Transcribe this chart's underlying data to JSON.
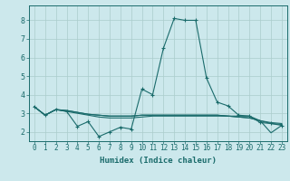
{
  "xlabel": "Humidex (Indice chaleur)",
  "xlim": [
    -0.5,
    23.5
  ],
  "ylim": [
    1.5,
    8.8
  ],
  "yticks": [
    2,
    3,
    4,
    5,
    6,
    7,
    8
  ],
  "xticks": [
    0,
    1,
    2,
    3,
    4,
    5,
    6,
    7,
    8,
    9,
    10,
    11,
    12,
    13,
    14,
    15,
    16,
    17,
    18,
    19,
    20,
    21,
    22,
    23
  ],
  "bg_color": "#cce8ec",
  "grid_color": "#aacccc",
  "line_color": "#1a6b6b",
  "lines": [
    [
      3.35,
      2.9,
      3.2,
      3.1,
      2.3,
      2.55,
      1.75,
      2.0,
      2.25,
      2.15,
      4.3,
      4.0,
      6.5,
      8.1,
      8.0,
      8.0,
      4.9,
      3.6,
      3.4,
      2.9,
      2.85,
      2.5,
      2.45,
      2.35
    ],
    [
      3.35,
      2.9,
      3.2,
      3.1,
      3.0,
      2.9,
      2.8,
      2.75,
      2.75,
      2.75,
      2.8,
      2.85,
      2.85,
      2.85,
      2.85,
      2.85,
      2.85,
      2.85,
      2.85,
      2.85,
      2.85,
      2.6,
      2.5,
      2.45
    ],
    [
      3.35,
      2.9,
      3.2,
      3.15,
      3.05,
      2.95,
      2.9,
      2.85,
      2.85,
      2.85,
      2.9,
      2.9,
      2.9,
      2.9,
      2.9,
      2.9,
      2.9,
      2.9,
      2.85,
      2.8,
      2.75,
      2.6,
      2.45,
      2.4
    ],
    [
      3.35,
      2.9,
      3.2,
      3.15,
      3.05,
      2.95,
      2.9,
      2.85,
      2.85,
      2.85,
      2.9,
      2.9,
      2.9,
      2.9,
      2.9,
      2.9,
      2.9,
      2.9,
      2.85,
      2.8,
      2.75,
      2.6,
      1.95,
      2.35
    ]
  ],
  "marker_line_idx": 0,
  "marker": "+",
  "markersize": 3.5,
  "linewidth": 0.8,
  "xlabel_fontsize": 6.5,
  "tick_fontsize": 5.5,
  "ytick_fontsize": 6.0
}
